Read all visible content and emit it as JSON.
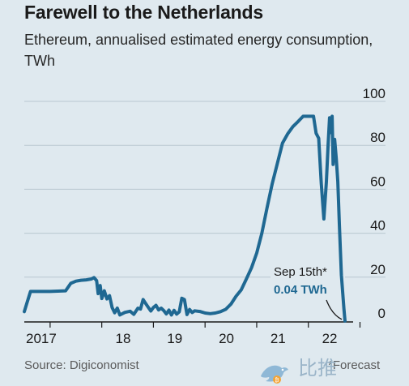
{
  "header": {
    "title": "Farewell to the Netherlands",
    "subtitle": "Ethereum, annualised estimated energy consumption, TWh"
  },
  "footer": {
    "source": "Source: Digiconomist",
    "forecast": "*Forecast"
  },
  "watermark": {
    "text": "比推",
    "icon": "bird-logo-icon"
  },
  "colors": {
    "background": "#dfe9ef",
    "line": "#1f6892",
    "gridline": "#b9c7d0",
    "axis": "#1a1a1a"
  },
  "annotation": {
    "date": "Sep 15th*",
    "value": "0.04 TWh",
    "x": 2022.71,
    "y": 0.04
  },
  "chart_data": {
    "type": "line",
    "title": "Farewell to the Netherlands",
    "subtitle": "Ethereum, annualised estimated energy consumption, TWh",
    "xlabel": "",
    "ylabel": "",
    "ylim": [
      0,
      100
    ],
    "xlim": [
      2016.5,
      2022.85
    ],
    "yticks": [
      0,
      20,
      40,
      60,
      80,
      100
    ],
    "ytick_labels": [
      "0",
      "20",
      "40",
      "60",
      "80",
      "100"
    ],
    "y_axis_position": "right",
    "xticks": [
      2017,
      2018,
      2019,
      2020,
      2021,
      2022
    ],
    "xtick_labels": [
      "2017",
      "18",
      "19",
      "20",
      "21",
      "22"
    ],
    "grid": true,
    "legend": "none",
    "series": [
      {
        "values": [
          [
            2016.5,
            4.3
          ],
          [
            2016.55,
            8.2
          ],
          [
            2016.6,
            12
          ],
          [
            2016.62,
            13.5
          ],
          [
            2016.67,
            13.5
          ],
          [
            2016.8,
            13.5
          ],
          [
            2016.95,
            13.5
          ],
          [
            2017.0,
            13.5
          ],
          [
            2017.1,
            13.6
          ],
          [
            2017.2,
            13.7
          ],
          [
            2017.3,
            13.8
          ],
          [
            2017.4,
            17.2
          ],
          [
            2017.5,
            18.2
          ],
          [
            2017.6,
            18.6
          ],
          [
            2017.7,
            18.8
          ],
          [
            2017.8,
            19.2
          ],
          [
            2017.85,
            19.8
          ],
          [
            2017.9,
            18.4
          ],
          [
            2017.93,
            12.5
          ],
          [
            2017.97,
            16.2
          ],
          [
            2018.0,
            10.3
          ],
          [
            2018.05,
            13.8
          ],
          [
            2018.1,
            10.1
          ],
          [
            2018.15,
            11.6
          ],
          [
            2018.2,
            6.2
          ],
          [
            2018.25,
            3.8
          ],
          [
            2018.3,
            5.9
          ],
          [
            2018.35,
            2.8
          ],
          [
            2018.45,
            4.0
          ],
          [
            2018.55,
            4.5
          ],
          [
            2018.62,
            3.1
          ],
          [
            2018.7,
            5.9
          ],
          [
            2018.75,
            5.5
          ],
          [
            2018.8,
            9.8
          ],
          [
            2018.85,
            8.0
          ],
          [
            2018.9,
            6.3
          ],
          [
            2018.95,
            4.6
          ],
          [
            2019.0,
            6.2
          ],
          [
            2019.05,
            7.2
          ],
          [
            2019.1,
            5.1
          ],
          [
            2019.15,
            5.9
          ],
          [
            2019.2,
            4.8
          ],
          [
            2019.25,
            3.3
          ],
          [
            2019.3,
            5.0
          ],
          [
            2019.33,
            3.6
          ],
          [
            2019.35,
            2.8
          ],
          [
            2019.4,
            4.9
          ],
          [
            2019.45,
            3.2
          ],
          [
            2019.5,
            4.2
          ],
          [
            2019.55,
            10.4
          ],
          [
            2019.6,
            9.8
          ],
          [
            2019.65,
            3.0
          ],
          [
            2019.7,
            5.3
          ],
          [
            2019.75,
            3.9
          ],
          [
            2019.8,
            4.7
          ],
          [
            2019.9,
            4.4
          ],
          [
            2020.0,
            3.7
          ],
          [
            2020.1,
            3.4
          ],
          [
            2020.2,
            3.7
          ],
          [
            2020.3,
            4.3
          ],
          [
            2020.4,
            5.4
          ],
          [
            2020.5,
            7.7
          ],
          [
            2020.6,
            11.3
          ],
          [
            2020.7,
            14.2
          ],
          [
            2020.8,
            19.2
          ],
          [
            2020.9,
            24.3
          ],
          [
            2021.0,
            31.0
          ],
          [
            2021.1,
            40.0
          ],
          [
            2021.2,
            51.5
          ],
          [
            2021.3,
            62.5
          ],
          [
            2021.4,
            71.8
          ],
          [
            2021.5,
            81.0
          ],
          [
            2021.6,
            85.2
          ],
          [
            2021.7,
            88.5
          ],
          [
            2021.8,
            90.8
          ],
          [
            2021.9,
            93.2
          ],
          [
            2022.0,
            93.2
          ],
          [
            2022.1,
            93.2
          ],
          [
            2022.15,
            85.5
          ],
          [
            2022.2,
            83.2
          ],
          [
            2022.25,
            62.5
          ],
          [
            2022.3,
            46.5
          ],
          [
            2022.35,
            63.5
          ],
          [
            2022.38,
            79.3
          ],
          [
            2022.41,
            92.5
          ],
          [
            2022.43,
            85.8
          ],
          [
            2022.46,
            93.2
          ],
          [
            2022.48,
            71.3
          ],
          [
            2022.51,
            82.7
          ],
          [
            2022.54,
            74.0
          ],
          [
            2022.57,
            63.5
          ],
          [
            2022.6,
            44.2
          ],
          [
            2022.64,
            21.0
          ],
          [
            2022.69,
            5.4
          ],
          [
            2022.71,
            0.04
          ]
        ]
      }
    ]
  }
}
